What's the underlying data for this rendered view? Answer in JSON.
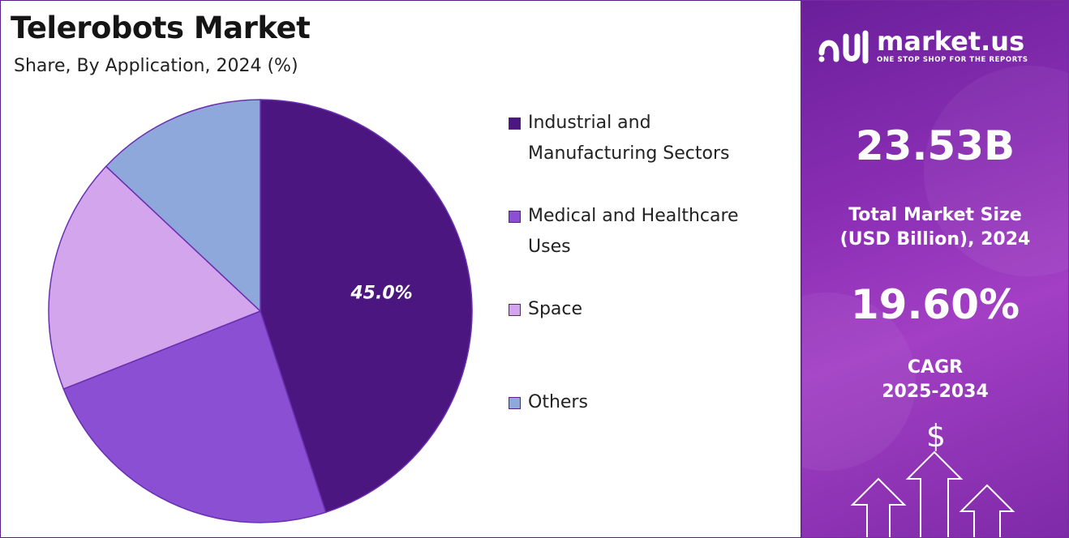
{
  "header": {
    "title": "Telerobots Market",
    "subtitle": "Share, By Application, 2024 (%)"
  },
  "chart_data": {
    "type": "pie",
    "title": "Telerobots Market",
    "subtitle": "Share, By Application, 2024 (%)",
    "start": "12 o'clock",
    "direction": "clockwise",
    "legend_position": "right",
    "slices": [
      {
        "label": "Industrial and Manufacturing Sectors",
        "value": 45.0,
        "color": "#4b1680",
        "data_label": "45.0%"
      },
      {
        "label": "Medical and Healthcare Uses",
        "value": 24.0,
        "color": "#8a4fd2",
        "data_label": ""
      },
      {
        "label": "Space",
        "value": 18.0,
        "color": "#d3a5ec",
        "data_label": ""
      },
      {
        "label": "Others",
        "value": 13.0,
        "color": "#8fa8dc",
        "data_label": ""
      }
    ]
  },
  "legend": {
    "items": [
      {
        "line1": "Industrial and",
        "line2": "Manufacturing Sectors"
      },
      {
        "line1": "Medical and Healthcare",
        "line2": "Uses"
      },
      {
        "line1": "Space",
        "line2": ""
      },
      {
        "line1": "Others",
        "line2": ""
      }
    ]
  },
  "sidebar": {
    "logo_name": "market.us",
    "logo_tagline": "ONE STOP SHOP FOR THE REPORTS",
    "market_size_value": "23.53B",
    "market_size_label_1": "Total Market Size",
    "market_size_label_2": "(USD Billion), 2024",
    "cagr_value": "19.60%",
    "cagr_label_1": "CAGR",
    "cagr_label_2": "2025-2034",
    "dollar_symbol": "$",
    "icons": [
      "market-us-logo-icon",
      "dollar-icon",
      "up-arrow-icon"
    ]
  },
  "colors": {
    "border": "#5b1f86",
    "panel_gradient_start": "#6a1f9a",
    "panel_gradient_mid": "#a23fc4"
  }
}
